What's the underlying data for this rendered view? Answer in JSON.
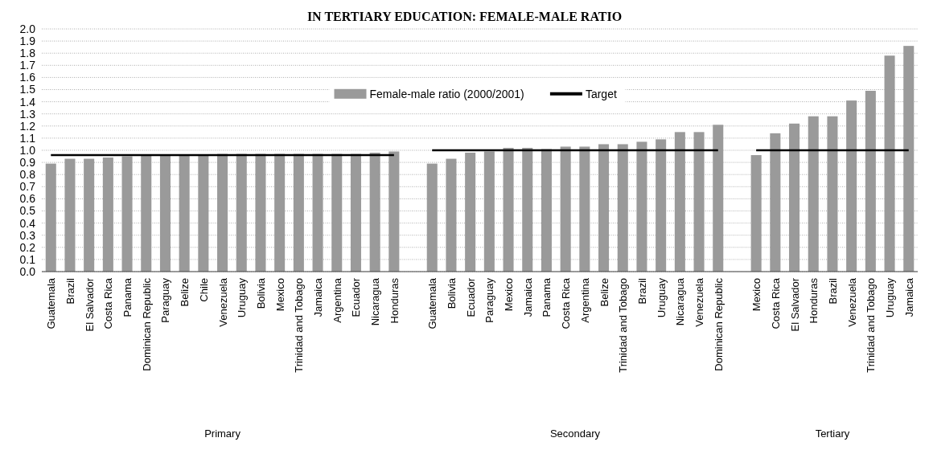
{
  "chart_data": {
    "type": "bar",
    "title": "IN TERTIARY EDUCATION: FEMALE-MALE RATIO",
    "categories": [
      "Guatemala",
      "Brazil",
      "El Salvador",
      "Costa Rica",
      "Panama",
      "Dominican Republic",
      "Paraguay",
      "Belize",
      "Chile",
      "Venezuela",
      "Uruguay",
      "Bolivia",
      "Mexico",
      "Trinidad and Tobago",
      "Jamaica",
      "Argentina",
      "Ecuador",
      "Nicaragua",
      "Honduras",
      null,
      "Guatemala",
      "Bolivia",
      "Ecuador",
      "Paraguay",
      "Mexico",
      "Jamaica",
      "Panama",
      "Costa Rica",
      "Argentina",
      "Belize",
      "Trinidad and Tobago",
      "Brazil",
      "Uruguay",
      "Nicaragua",
      "Venezuela",
      "Dominican Republic",
      null,
      "Mexico",
      "Costa Rica",
      "El Salvador",
      "Honduras",
      "Brazil",
      "Venezuela",
      "Trinidad and Tobago",
      "Uruguay",
      "Jamaica"
    ],
    "series": [
      {
        "name": "Female-male ratio (2000/2001)",
        "color": "#9a9a9a",
        "values": [
          0.89,
          0.93,
          0.93,
          0.94,
          0.95,
          0.96,
          0.96,
          0.96,
          0.96,
          0.97,
          0.97,
          0.97,
          0.97,
          0.97,
          0.97,
          0.97,
          0.97,
          0.98,
          0.99,
          null,
          0.89,
          0.93,
          0.98,
          0.99,
          1.02,
          1.02,
          1.01,
          1.03,
          1.03,
          1.05,
          1.05,
          1.07,
          1.09,
          1.15,
          1.15,
          1.21,
          null,
          0.96,
          1.14,
          1.22,
          1.28,
          1.28,
          1.41,
          1.49,
          1.78,
          1.86
        ]
      },
      {
        "name": "Target",
        "type": "line",
        "color": "#000000",
        "values": [
          0.96,
          0.96,
          0.96,
          0.96,
          0.96,
          0.96,
          0.96,
          0.96,
          0.96,
          0.96,
          0.96,
          0.96,
          0.96,
          0.96,
          0.96,
          0.96,
          0.96,
          0.96,
          0.96,
          null,
          1.0,
          1.0,
          1.0,
          1.0,
          1.0,
          1.0,
          1.0,
          1.0,
          1.0,
          1.0,
          1.0,
          1.0,
          1.0,
          1.0,
          1.0,
          1.0,
          null,
          1.0,
          1.0,
          1.0,
          1.0,
          1.0,
          1.0,
          1.0,
          1.0,
          1.0
        ]
      }
    ],
    "ylim": [
      0,
      2
    ],
    "yticks": [
      {
        "value": 0,
        "label": "0.0"
      },
      {
        "value": 0.1,
        "label": "0.1"
      },
      {
        "value": 0.2,
        "label": "0.2"
      },
      {
        "value": 0.3,
        "label": "0.3"
      },
      {
        "value": 0.4,
        "label": "0.4"
      },
      {
        "value": 0.5,
        "label": "0.5"
      },
      {
        "value": 0.6,
        "label": "0.6"
      },
      {
        "value": 0.7,
        "label": "0.7"
      },
      {
        "value": 0.8,
        "label": "0.8"
      },
      {
        "value": 0.9,
        "label": "0.9"
      },
      {
        "value": 1,
        "label": "1.0"
      },
      {
        "value": 1.1,
        "label": "1.1"
      },
      {
        "value": 1.2,
        "label": "1.2"
      },
      {
        "value": 1.3,
        "label": "1.3"
      },
      {
        "value": 1.4,
        "label": "1.4"
      },
      {
        "value": 1.5,
        "label": "1.5"
      },
      {
        "value": 1.6,
        "label": "1.6"
      },
      {
        "value": 1.7,
        "label": "1.7"
      },
      {
        "value": 1.8,
        "label": "1.8"
      },
      {
        "value": 1.9,
        "label": "1.9"
      },
      {
        "value": 2,
        "label": "2.0"
      }
    ],
    "grid": "y",
    "legend": "top",
    "line_style": "solid",
    "marker": "none",
    "annotations": [
      "Primary",
      "Secondary",
      "Tertiary"
    ]
  }
}
